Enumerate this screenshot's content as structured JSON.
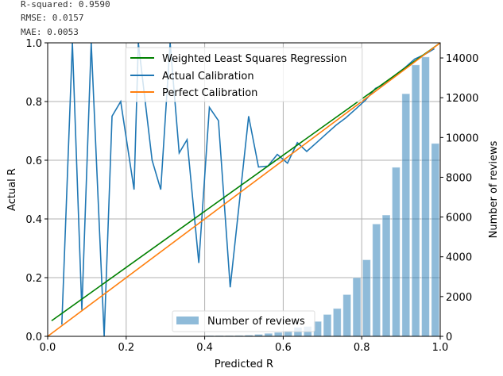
{
  "stats": {
    "r_squared": "R-squared: 0.9590",
    "rmse": "RMSE: 0.0157",
    "mae": "MAE: 0.0053"
  },
  "chart_data": {
    "type": "line",
    "title": "",
    "xlabel": "Predicted R",
    "ylabel": "Actual R",
    "y2label": "Number of reviews",
    "xlim": [
      0,
      1
    ],
    "ylim": [
      0,
      1
    ],
    "y2lim": [
      0,
      14760
    ],
    "grid": true,
    "xticks": [
      "0.0",
      "0.2",
      "0.4",
      "0.6",
      "0.8",
      "1.0"
    ],
    "yticks": [
      "0.0",
      "0.2",
      "0.4",
      "0.6",
      "0.8",
      "1.0"
    ],
    "y2ticks": [
      "0",
      "2000",
      "4000",
      "6000",
      "8000",
      "10000",
      "12000",
      "14000"
    ],
    "legend_lines": {
      "placement": "top-center",
      "entries": [
        "Weighted Least Squares Regression",
        "Actual Calibration",
        "Perfect Calibration"
      ]
    },
    "legend_bars": {
      "placement": "bottom-center",
      "entries": [
        "Number of reviews"
      ]
    },
    "colors": {
      "wls": "#008000",
      "actual": "#1f77b4",
      "perfect": "#ff7f0e",
      "bars": "#1f77b4"
    },
    "series": [
      {
        "name": "Weighted Least Squares Regression",
        "x": [
          0.01,
          1.0
        ],
        "y": [
          0.053,
          1.0
        ]
      },
      {
        "name": "Actual Calibration",
        "x": [
          0.036,
          0.063,
          0.087,
          0.111,
          0.144,
          0.164,
          0.186,
          0.22,
          0.231,
          0.266,
          0.288,
          0.312,
          0.335,
          0.355,
          0.385,
          0.412,
          0.435,
          0.465,
          0.512,
          0.537,
          0.561,
          0.585,
          0.611,
          0.636,
          0.66,
          0.685,
          0.71,
          0.735,
          0.76,
          0.785,
          0.81,
          0.835,
          0.86,
          0.885,
          0.91,
          0.935,
          0.96,
          0.985
        ],
        "y": [
          0.04,
          1.0,
          0.09,
          1.0,
          0.0,
          0.75,
          0.8,
          0.5,
          1.0,
          0.6,
          0.5,
          1.0,
          0.625,
          0.67,
          0.25,
          0.78,
          0.735,
          0.167,
          0.75,
          0.577,
          0.58,
          0.62,
          0.59,
          0.66,
          0.63,
          0.66,
          0.69,
          0.72,
          0.745,
          0.775,
          0.805,
          0.845,
          0.86,
          0.89,
          0.915,
          0.945,
          0.96,
          0.98
        ]
      },
      {
        "name": "Perfect Calibration",
        "x": [
          0,
          1
        ],
        "y": [
          0,
          1
        ]
      }
    ],
    "bars": {
      "name": "Number of reviews",
      "bin_width": 0.025,
      "x": [
        0.0125,
        0.0375,
        0.0625,
        0.0875,
        0.1125,
        0.1375,
        0.1625,
        0.1875,
        0.2125,
        0.2375,
        0.2625,
        0.2875,
        0.3125,
        0.3375,
        0.3625,
        0.3875,
        0.4125,
        0.4375,
        0.4625,
        0.4875,
        0.5125,
        0.5375,
        0.5625,
        0.5875,
        0.6125,
        0.6375,
        0.6625,
        0.6875,
        0.7125,
        0.7375,
        0.7625,
        0.7875,
        0.8125,
        0.8375,
        0.8625,
        0.8875,
        0.9125,
        0.9375,
        0.9625,
        0.9875
      ],
      "values": [
        5,
        5,
        5,
        5,
        5,
        5,
        5,
        5,
        5,
        5,
        5,
        5,
        5,
        5,
        5,
        5,
        40,
        40,
        40,
        45,
        60,
        100,
        150,
        200,
        280,
        450,
        500,
        750,
        1100,
        1400,
        2100,
        2950,
        3850,
        5650,
        6100,
        8500,
        12200,
        13650,
        14050,
        9700
      ]
    }
  }
}
